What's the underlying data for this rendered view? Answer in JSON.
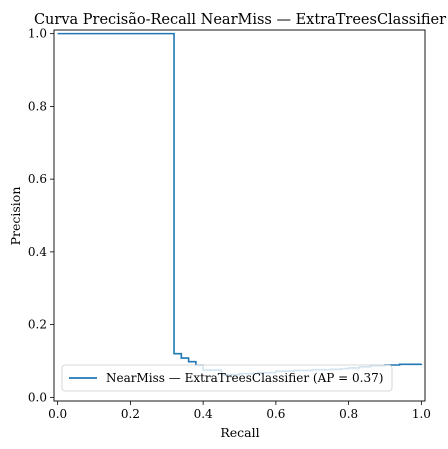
{
  "chart_data": {
    "type": "line",
    "title": "Curva Precisão-Recall NearMiss — ExtraTreesClassifier",
    "xlabel": "Recall",
    "ylabel": "Precision",
    "xlim": [
      -0.01,
      1.01
    ],
    "ylim": [
      -0.01,
      1.01
    ],
    "xticks": [
      "0.0",
      "0.2",
      "0.4",
      "0.6",
      "0.8",
      "1.0"
    ],
    "yticks": [
      "0.0",
      "0.2",
      "0.4",
      "0.6",
      "0.8",
      "1.0"
    ],
    "grid": false,
    "legend_position": "lower-left",
    "series": [
      {
        "name": "NearMiss — ExtraTreesClassifier (AP = 0.37)",
        "color": "#1f77b4",
        "step": "post",
        "x": [
          0.0,
          0.32,
          0.32,
          0.34,
          0.34,
          0.36,
          0.36,
          0.38,
          0.38,
          0.4,
          0.4,
          0.45,
          0.5,
          0.55,
          0.6,
          0.65,
          0.7,
          0.75,
          0.78,
          0.8,
          0.83,
          0.86,
          0.9,
          0.94,
          1.0
        ],
        "y": [
          1.0,
          1.0,
          0.12,
          0.12,
          0.108,
          0.108,
          0.098,
          0.098,
          0.088,
          0.088,
          0.075,
          0.062,
          0.065,
          0.068,
          0.072,
          0.074,
          0.076,
          0.077,
          0.079,
          0.081,
          0.084,
          0.087,
          0.089,
          0.091,
          0.092
        ]
      }
    ]
  }
}
